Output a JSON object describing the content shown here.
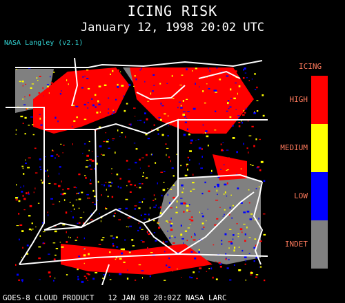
{
  "header": {
    "title": "ICING RISK",
    "datetime": "January 12, 1998 20:02 UTC",
    "credit": "NASA Langley (v2.1)"
  },
  "legend": {
    "title": "ICING",
    "items": [
      {
        "label": "HIGH",
        "color": "#ff0000"
      },
      {
        "label": "MEDIUM",
        "color": "#ffff00"
      },
      {
        "label": "LOW",
        "color": "#0000ff"
      },
      {
        "label": "INDET",
        "color": "#808080"
      }
    ]
  },
  "footer": {
    "text": "GOES-8 CLOUD PRODUCT   12 JAN 98 20:02Z NASA LARC"
  },
  "colors": {
    "background": "#000000",
    "boundaries": "#ffffff",
    "credit": "#33d6d6",
    "legend_text": "#ff7a5c"
  }
}
